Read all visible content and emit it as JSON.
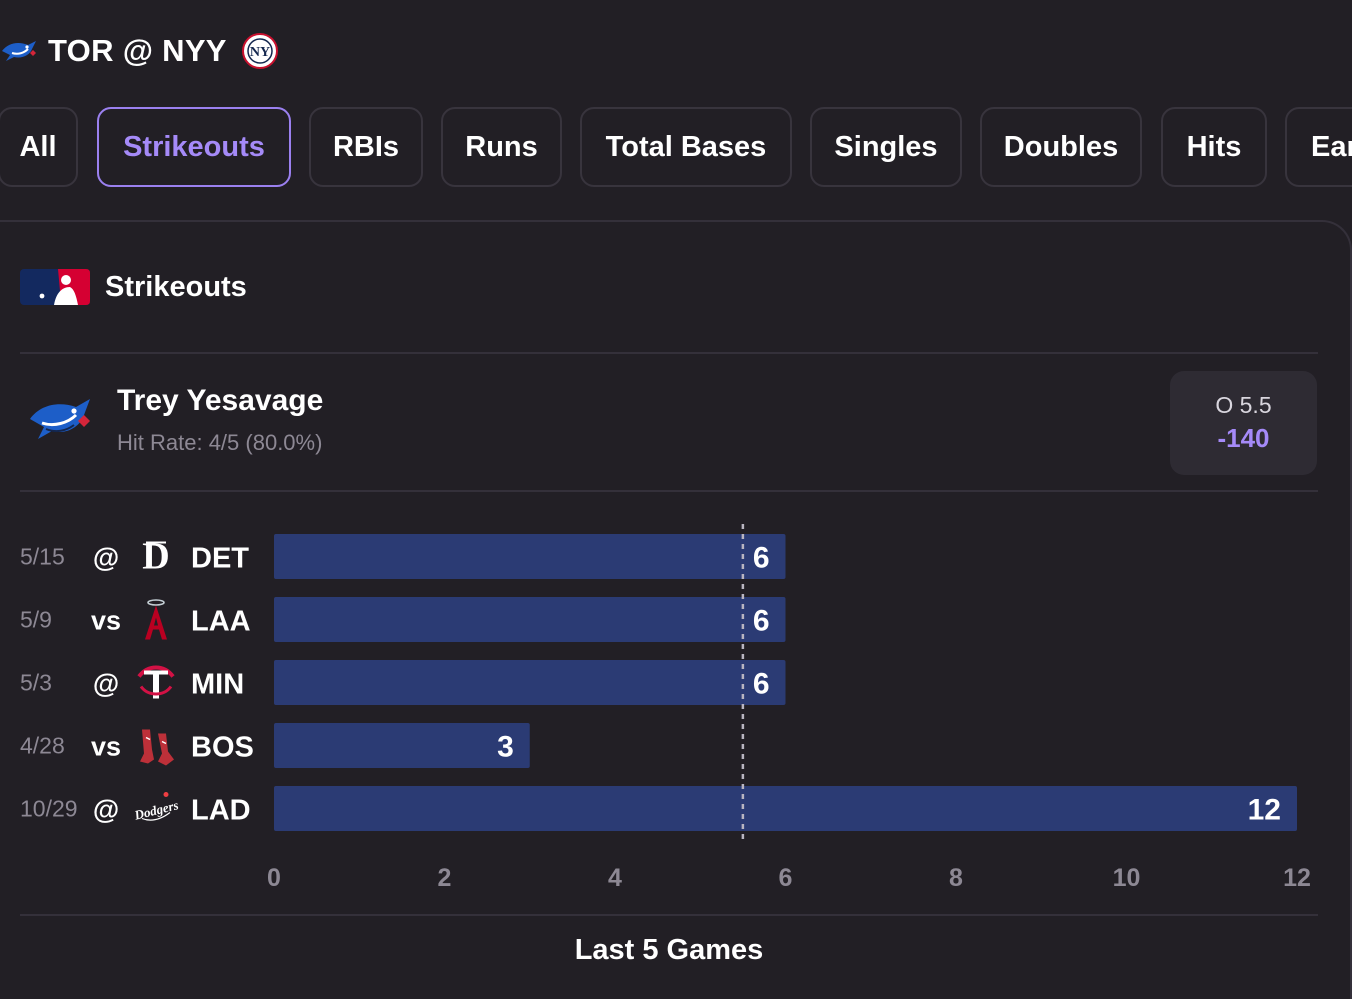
{
  "matchup": {
    "away": "TOR",
    "at": "@",
    "home": "NYY",
    "title": "TOR @ NYY"
  },
  "tabs": [
    {
      "label": "All",
      "active": false
    },
    {
      "label": "Strikeouts",
      "active": true
    },
    {
      "label": "RBIs",
      "active": false
    },
    {
      "label": "Runs",
      "active": false
    },
    {
      "label": "Total Bases",
      "active": false
    },
    {
      "label": "Singles",
      "active": false
    },
    {
      "label": "Doubles",
      "active": false
    },
    {
      "label": "Hits",
      "active": false
    },
    {
      "label": "Ear",
      "active": false
    }
  ],
  "market": {
    "title": "Strikeouts",
    "logo": "mlb-logo"
  },
  "player": {
    "name": "Trey Yesavage",
    "team_logo": "blue-jays-logo",
    "hit_rate": "Hit Rate: 4/5 (80.0%)"
  },
  "line": {
    "label": "O 5.5",
    "odds": "-140"
  },
  "colors": {
    "accent": "#a58af8",
    "bar": "#2b3b74",
    "background": "#221f25",
    "muted": "#8d8894"
  },
  "chart_data": {
    "type": "bar",
    "orientation": "horizontal",
    "title": "Last 5 Games",
    "threshold": 5.5,
    "xlim": [
      0,
      12
    ],
    "x_ticks": [
      "0",
      "2",
      "4",
      "6",
      "8",
      "10",
      "12"
    ],
    "grid": false,
    "rows": [
      {
        "date": "5/15",
        "location": "@",
        "opponent": "DET",
        "logo": "tigers-logo",
        "value": 6
      },
      {
        "date": "5/9",
        "location": "vs",
        "opponent": "LAA",
        "logo": "angels-logo",
        "value": 6
      },
      {
        "date": "5/3",
        "location": "@",
        "opponent": "MIN",
        "logo": "twins-logo",
        "value": 6
      },
      {
        "date": "4/28",
        "location": "vs",
        "opponent": "BOS",
        "logo": "red-sox-logo",
        "value": 3
      },
      {
        "date": "10/29",
        "location": "@",
        "opponent": "LAD",
        "logo": "dodgers-logo",
        "value": 12
      }
    ]
  }
}
